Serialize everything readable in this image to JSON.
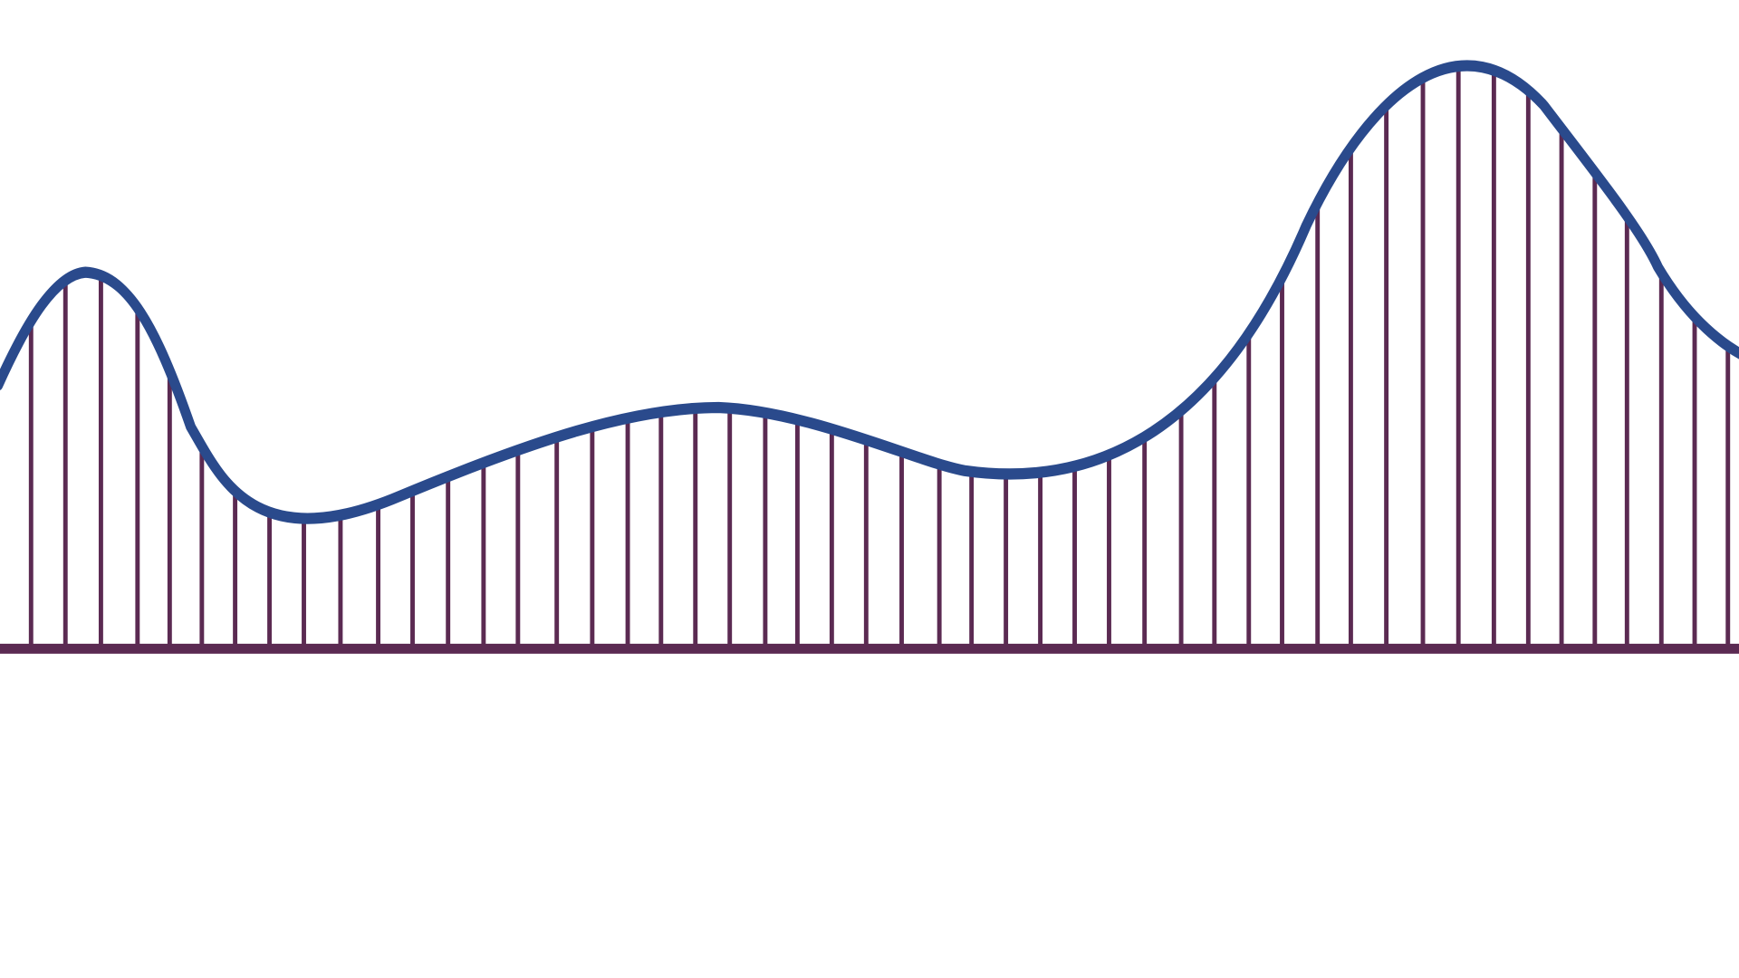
{
  "illustration": {
    "subject": "roller-coaster-track",
    "colors": {
      "background": "#ffffff",
      "track": "#2a4a8c",
      "supports": "#5b2a52",
      "ground": "#5b2a52"
    }
  }
}
